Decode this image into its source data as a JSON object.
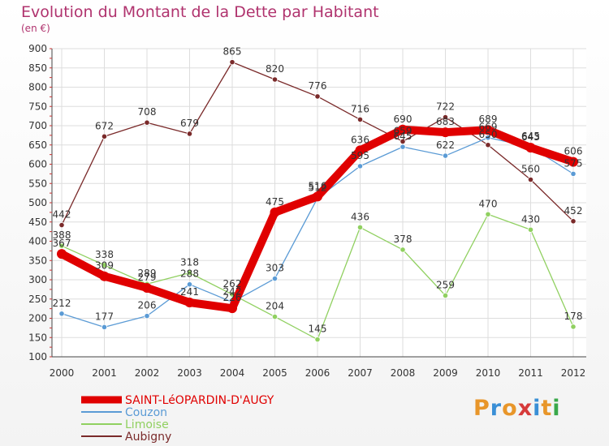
{
  "title": "Evolution du Montant de la Dette par Habitant",
  "subtitle": "(en €)",
  "logo": {
    "text": "Proxiti",
    "colors": [
      "#e8962a",
      "#3a8fd6",
      "#e8962a",
      "#d63a3a",
      "#3a8fd6",
      "#e8962a",
      "#3aa84a"
    ]
  },
  "chart_data": {
    "type": "line",
    "x": [
      "2000",
      "2001",
      "2002",
      "2003",
      "2004",
      "2005",
      "2006",
      "2007",
      "2008",
      "2009",
      "2010",
      "2011",
      "2012"
    ],
    "ylim": [
      100,
      900
    ],
    "yticks": [
      100,
      150,
      200,
      250,
      300,
      350,
      400,
      450,
      500,
      550,
      600,
      650,
      700,
      750,
      800,
      850,
      900
    ],
    "grid": true,
    "legend": "bottom-left",
    "series": [
      {
        "name": "SAINT-LéOPARDIN-D'AUGY",
        "color": "#e00000",
        "width": 10,
        "values": [
          367,
          309,
          279,
          241,
          226,
          475,
          516,
          636,
          690,
          683,
          689,
          643,
          606
        ],
        "labels": [
          "367",
          "309",
          "279",
          "241",
          "226",
          "475",
          "516",
          "636",
          "690",
          "683",
          "689",
          "643",
          "606"
        ]
      },
      {
        "name": "Couzon",
        "color": "#5b9bd5",
        "width": 1.3,
        "values": [
          212,
          177,
          206,
          288,
          242,
          303,
          512,
          595,
          645,
          622,
          669,
          645,
          575
        ],
        "labels": [
          "212",
          "177",
          "206",
          "288",
          "242",
          "303",
          "512",
          "595",
          "645",
          "622",
          "669",
          "645",
          "575"
        ]
      },
      {
        "name": "Limoise",
        "color": "#90d060",
        "width": 1.3,
        "values": [
          388,
          338,
          289,
          318,
          262,
          204,
          145,
          436,
          378,
          259,
          470,
          430,
          178
        ],
        "labels": [
          "388",
          "338",
          "289",
          "318",
          "262",
          "204",
          "145",
          "436",
          "378",
          "259",
          "470",
          "430",
          "178"
        ]
      },
      {
        "name": "Aubigny",
        "color": "#7a2a2a",
        "width": 1.3,
        "values": [
          442,
          672,
          708,
          679,
          865,
          820,
          776,
          716,
          659,
          722,
          650,
          560,
          452
        ],
        "labels": [
          "442",
          "672",
          "708",
          "679",
          "865",
          "820",
          "776",
          "716",
          "659",
          "722",
          "650",
          "560",
          "452"
        ]
      }
    ]
  }
}
